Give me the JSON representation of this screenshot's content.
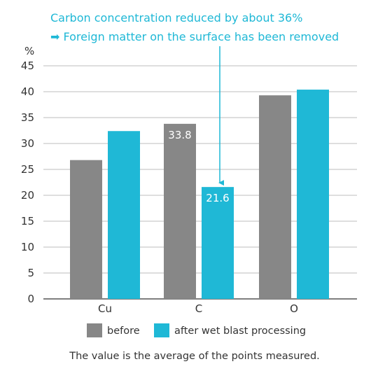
{
  "annotation": {
    "line1": "Carbon concentration reduced by about 36%",
    "line2": "➡ Foreign matter on the surface has been removed"
  },
  "footnote": "The value is the average of the points measured.",
  "colors": {
    "before": "#878787",
    "after": "#1fb8d6",
    "axis": "#333333",
    "grid": "#bdbdbd"
  },
  "chart_data": {
    "type": "bar",
    "ylabel": "%",
    "ylim": [
      0,
      45
    ],
    "yticks": [
      0,
      5,
      10,
      15,
      20,
      25,
      30,
      35,
      40,
      45
    ],
    "categories": [
      "Cu",
      "C",
      "O"
    ],
    "series": [
      {
        "name": "before",
        "values": [
          26.8,
          33.8,
          39.3
        ]
      },
      {
        "name": "after wet blast processing",
        "values": [
          32.4,
          21.6,
          40.4
        ]
      }
    ],
    "data_labels": [
      {
        "series": 0,
        "index": 1,
        "text": "33.8"
      },
      {
        "series": 1,
        "index": 1,
        "text": "21.6"
      }
    ],
    "grid": true,
    "legend_position": "bottom"
  }
}
